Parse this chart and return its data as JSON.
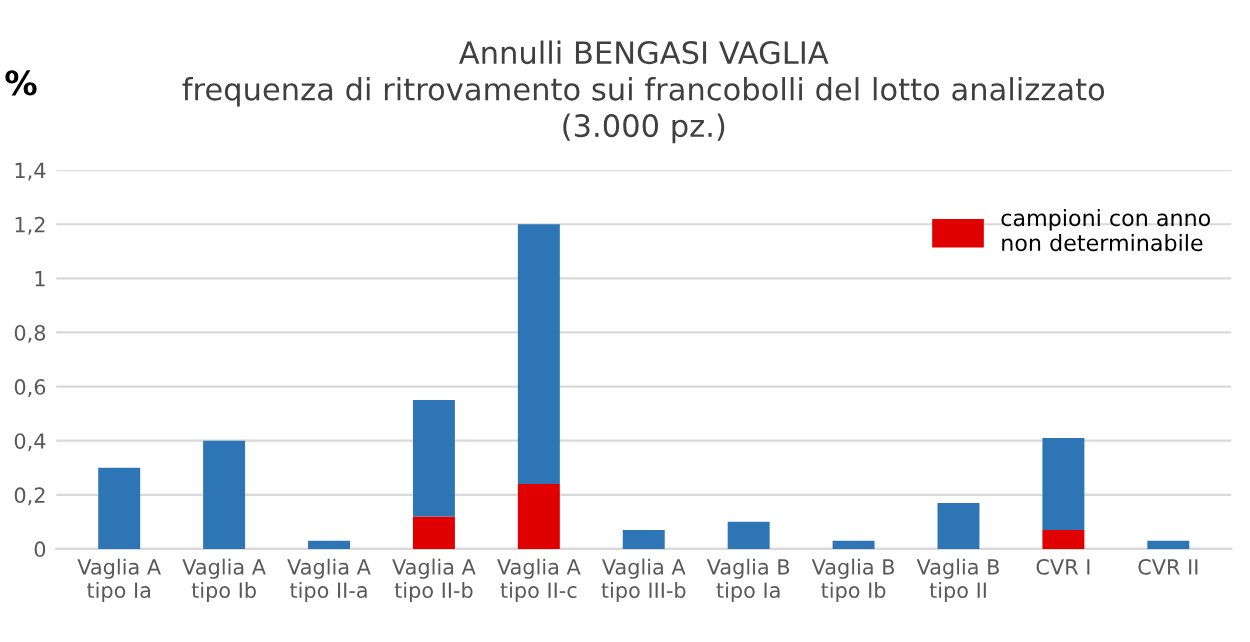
{
  "chart_data": {
    "type": "bar",
    "title": "Annulli BENGASI VAGLIA\nfrequenza di ritrovamento sui francobolli del lotto analizzato\n(3.000 pz.)",
    "ylabel": "%",
    "categories": [
      "Vaglia A\ntipo Ia",
      "Vaglia A\ntipo Ib",
      "Vaglia A\ntipo II-a",
      "Vaglia A\ntipo II-b",
      "Vaglia A\ntipo II-c",
      "Vaglia A\ntipo III-b",
      "Vaglia B\ntipo Ia",
      "Vaglia B\ntipo Ib",
      "Vaglia B\ntipo II",
      "CVR I",
      "CVR II"
    ],
    "stacked": true,
    "series": [
      {
        "name": "campioni con anno\nnon determinabile",
        "color": "#e00000",
        "values": [
          null,
          null,
          null,
          0.12,
          0.24,
          null,
          null,
          null,
          null,
          0.07,
          null
        ]
      },
      {
        "color": "#2e75b6",
        "values": [
          0.3,
          0.4,
          0.03,
          0.43,
          0.96,
          0.07,
          0.1,
          0.03,
          0.17,
          0.34,
          0.03
        ]
      }
    ],
    "ylim": [
      0,
      1.4
    ],
    "yticks": [
      0,
      {
        "value": 0.2,
        "label": "0,2"
      },
      {
        "value": 0.4,
        "label": "0,4"
      },
      {
        "value": 0.6,
        "label": "0,6"
      },
      {
        "value": 0.8,
        "label": "0,8"
      },
      1,
      {
        "value": 1.2,
        "label": "1,2"
      },
      {
        "value": 1.4,
        "label": "1,4"
      }
    ],
    "grid": "y",
    "legend": "top right"
  }
}
